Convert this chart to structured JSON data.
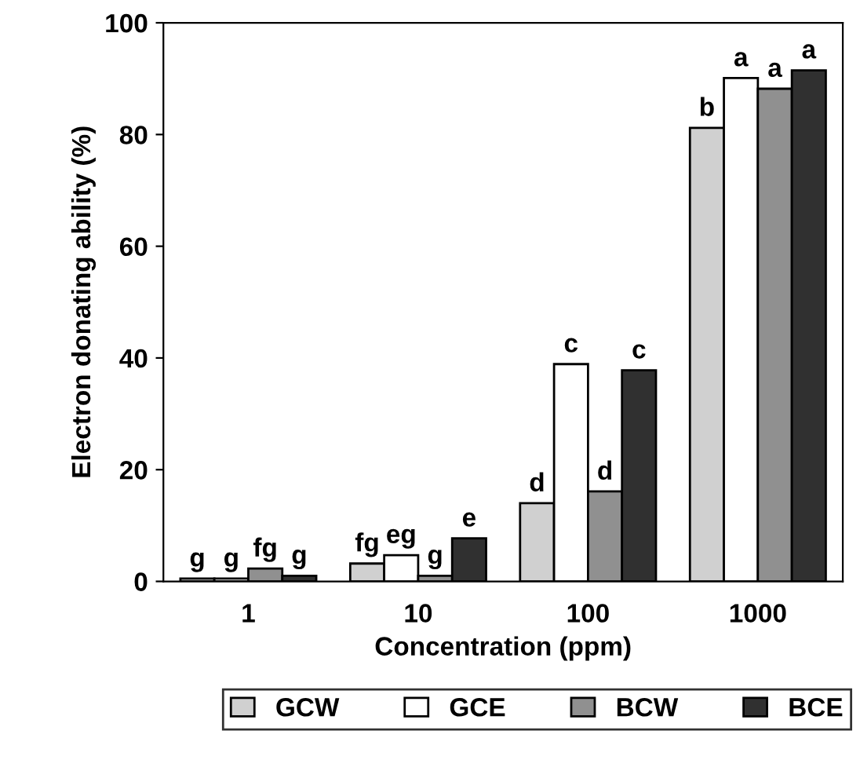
{
  "chart_data": {
    "type": "bar",
    "xlabel": "Concentration (ppm)",
    "ylabel": "Electron donating ability (%)",
    "categories": [
      "1",
      "10",
      "100",
      "1000"
    ],
    "series": [
      {
        "name": "GCW",
        "color": "#d0d0d0",
        "values": [
          0.5,
          3.2,
          14,
          81.2
        ],
        "value_labels": [
          "g",
          "fg",
          "d",
          "b"
        ]
      },
      {
        "name": "GCE",
        "color": "#ffffff",
        "values": [
          0.5,
          4.7,
          38.9,
          90.1
        ],
        "value_labels": [
          "g",
          "eg",
          "c",
          "a"
        ]
      },
      {
        "name": "BCW",
        "color": "#909090",
        "values": [
          2.3,
          1.0,
          16.1,
          88.2
        ],
        "value_labels": [
          "fg",
          "g",
          "d",
          "a"
        ]
      },
      {
        "name": "BCE",
        "color": "#303030",
        "values": [
          1.0,
          7.7,
          37.8,
          91.5
        ],
        "value_labels": [
          "g",
          "e",
          "c",
          "a"
        ]
      }
    ],
    "ylim": [
      0,
      100
    ],
    "yticks": [
      0,
      20,
      40,
      60,
      80,
      100
    ],
    "grid": false,
    "legend": "bottom"
  }
}
